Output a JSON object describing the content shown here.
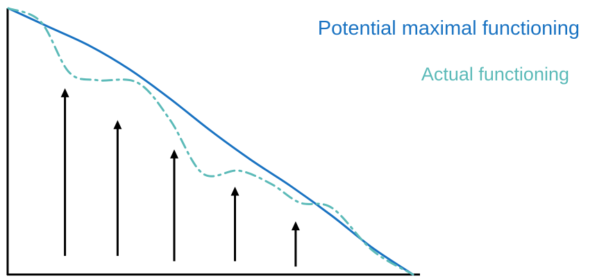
{
  "chart_data": {
    "type": "line",
    "title": "",
    "xlabel": "",
    "ylabel": "",
    "xlim": [
      0,
      100
    ],
    "ylim": [
      0,
      100
    ],
    "grid": false,
    "legend": "top-right",
    "series": [
      {
        "name": "Potential maximal functioning",
        "color": "#1a73c2",
        "style": "solid",
        "x": [
          0,
          10,
          20,
          30,
          40,
          50,
          60,
          70,
          80,
          90,
          100
        ],
        "y": [
          100,
          93,
          86,
          77,
          66,
          54,
          43,
          33,
          22,
          10,
          0
        ]
      },
      {
        "name": "Actual functioning",
        "color": "#5bbab8",
        "style": "dash-dot",
        "x": [
          0,
          8,
          15,
          22,
          32,
          40,
          48,
          57,
          65,
          72,
          80,
          90,
          100
        ],
        "y": [
          100,
          95,
          76,
          73,
          72,
          58,
          38,
          39,
          34,
          27,
          25,
          9,
          0
        ]
      }
    ],
    "arrows": [
      {
        "x": 14,
        "y_from": 7,
        "y_to": 70
      },
      {
        "x": 27,
        "y_from": 7,
        "y_to": 58
      },
      {
        "x": 41,
        "y_from": 5,
        "y_to": 47
      },
      {
        "x": 56,
        "y_from": 5,
        "y_to": 33
      },
      {
        "x": 71,
        "y_from": 3,
        "y_to": 20
      }
    ]
  }
}
